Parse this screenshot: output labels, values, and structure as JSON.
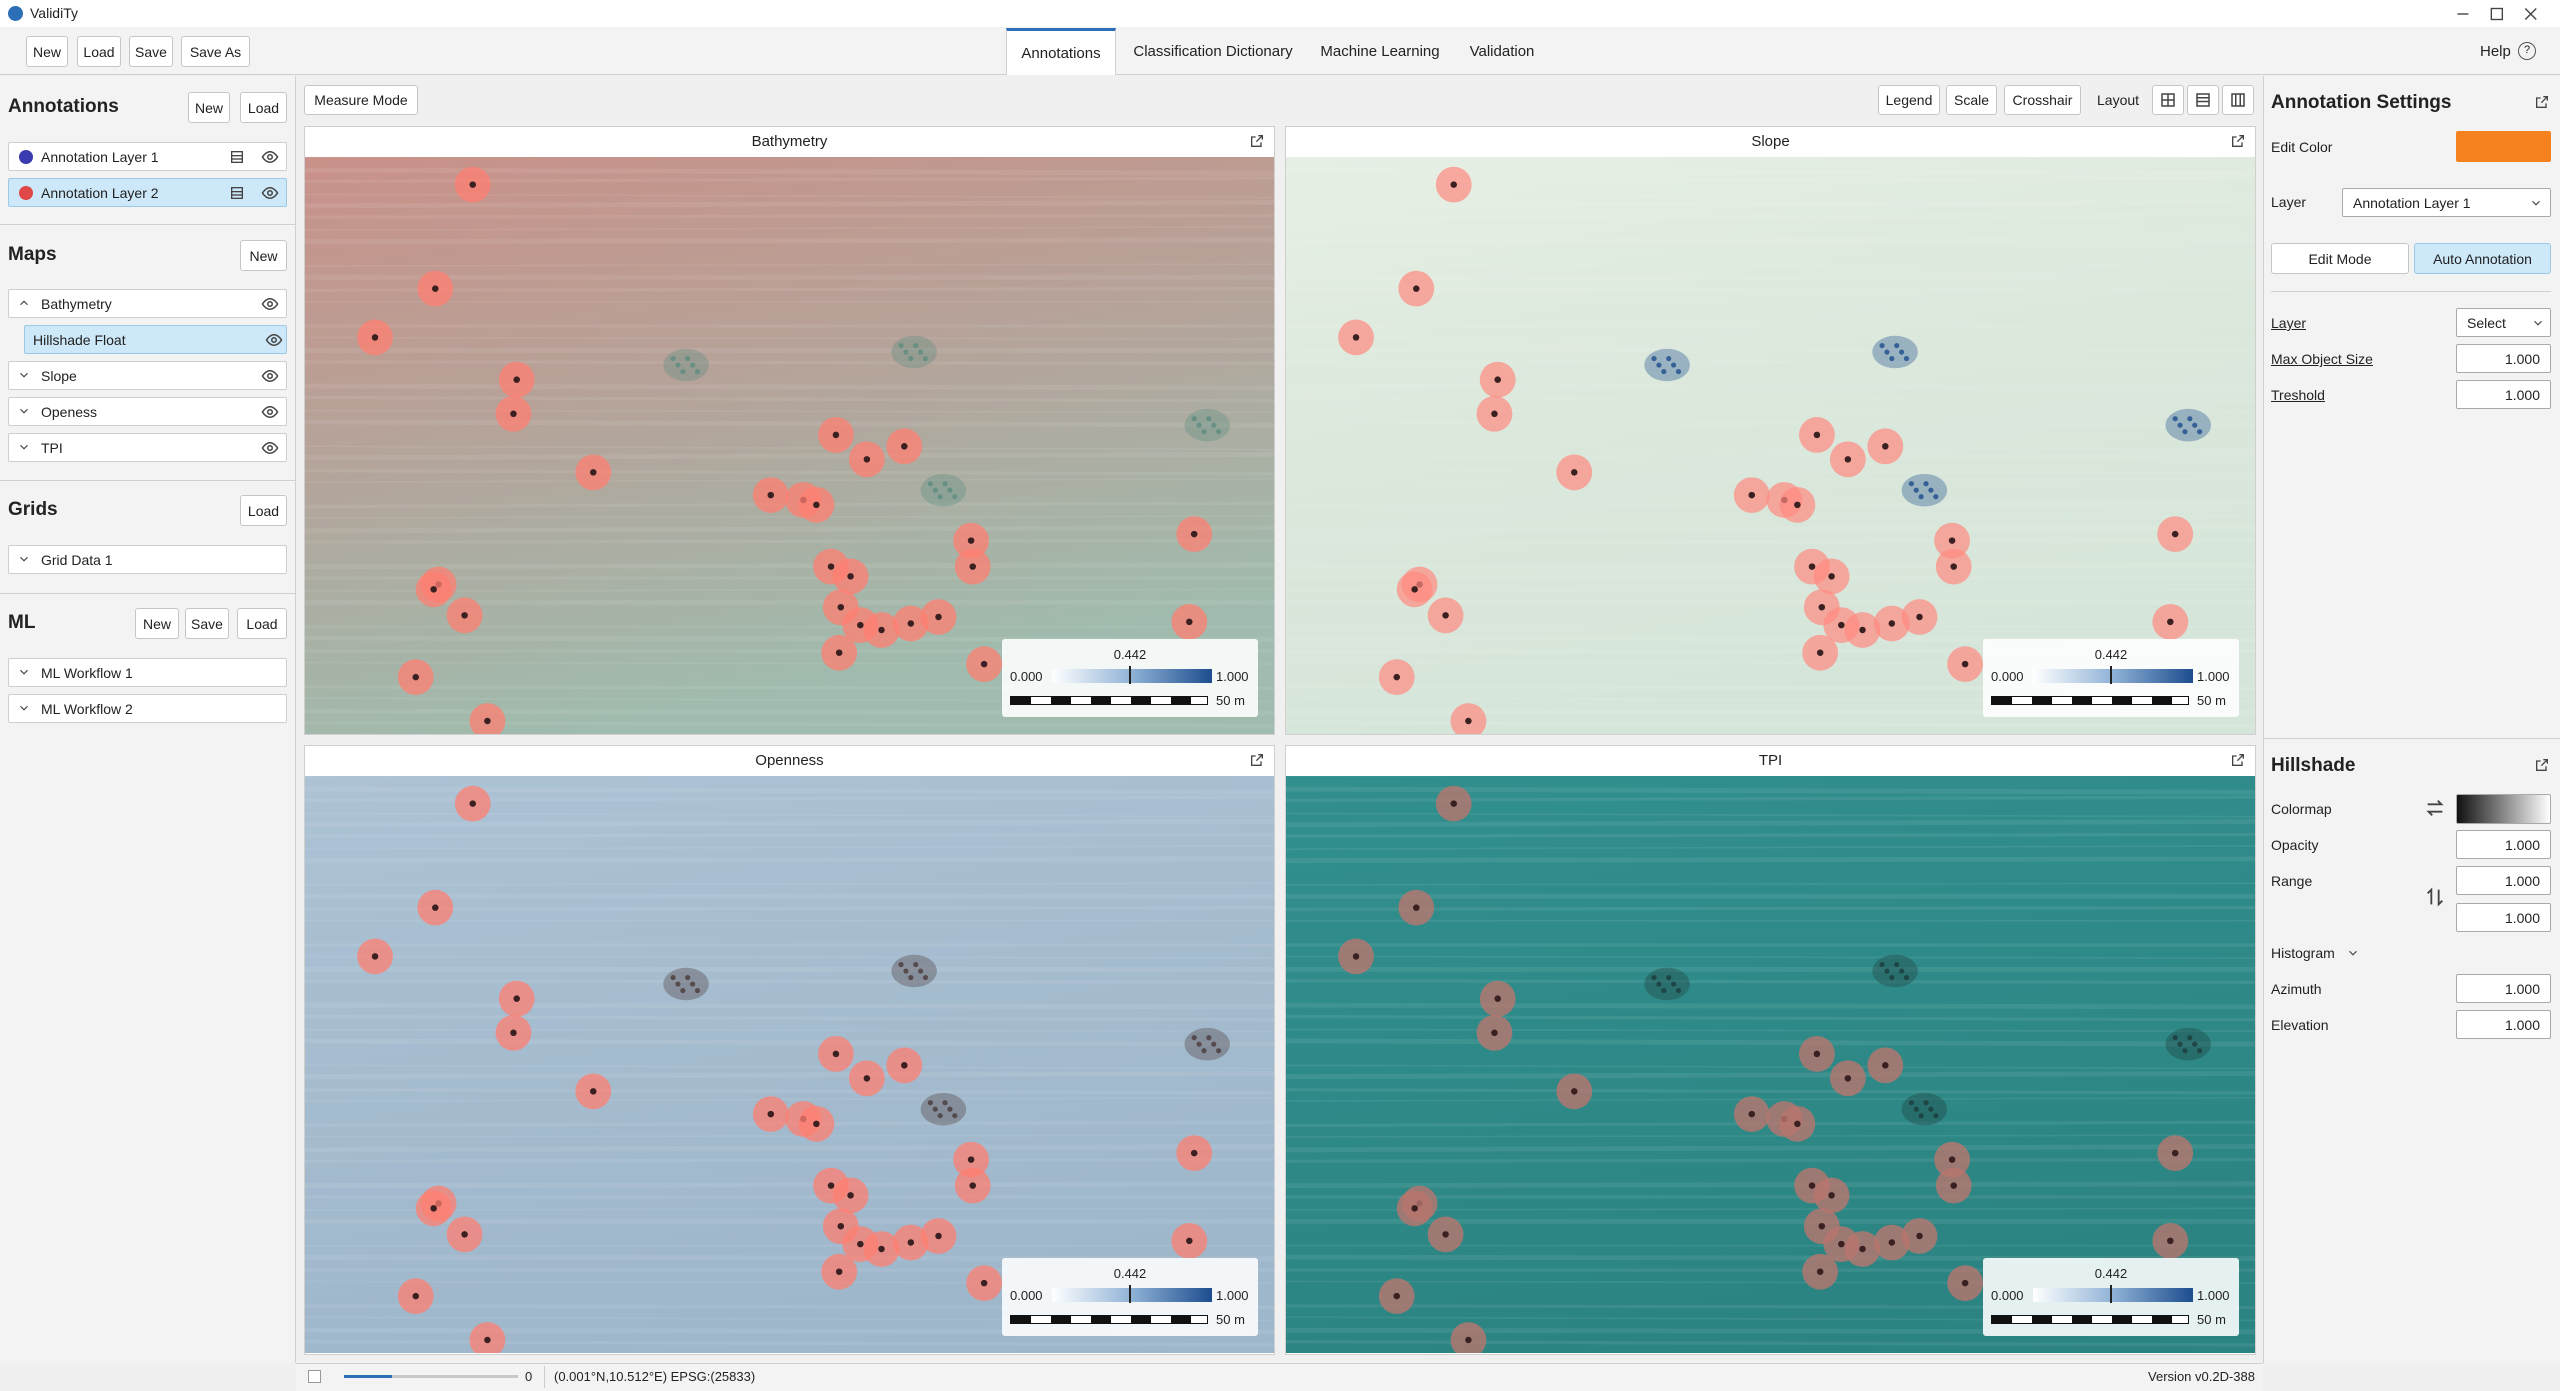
{
  "window": {
    "title": "ValidiTy"
  },
  "toolbar": {
    "file_buttons": [
      "New",
      "Load",
      "Save",
      "Save As"
    ],
    "tabs": [
      "Annotations",
      "Classification Dictionary",
      "Machine Learning",
      "Validation"
    ],
    "help": "Help"
  },
  "sidebar": {
    "annotations": {
      "title": "Annotations",
      "buttons": [
        "New",
        "Load"
      ],
      "layers": [
        "Annotation Layer 1",
        "Annotation Layer 2"
      ]
    },
    "maps": {
      "title": "Maps",
      "buttons": [
        "New"
      ],
      "items": [
        "Bathymetry",
        "Hillshade Float",
        "Slope",
        "Openess",
        "TPI"
      ]
    },
    "grids": {
      "title": "Grids",
      "buttons": [
        "Load"
      ],
      "items": [
        "Grid Data 1"
      ]
    },
    "ml": {
      "title": "ML",
      "buttons": [
        "New",
        "Save",
        "Load"
      ],
      "items": [
        "ML Workflow 1",
        "ML Workflow 2"
      ]
    }
  },
  "viewer": {
    "measure_mode": "Measure Mode",
    "toggles": [
      "Legend",
      "Scale",
      "Crosshair"
    ],
    "layout_label": "Layout",
    "panels": [
      "Bathymetry",
      "Slope",
      "Openness",
      "TPI"
    ],
    "legend": {
      "value": "0.442",
      "min": "0.000",
      "max": "1.000",
      "scale": "50 m"
    }
  },
  "settings": {
    "title": "Annotation Settings",
    "edit_color": "Edit Color",
    "layer_label": "Layer",
    "layer_value": "Annotation Layer 1",
    "modes": [
      "Edit Mode",
      "Auto Annotation"
    ],
    "fields": [
      {
        "label": "Layer",
        "value": "Select"
      },
      {
        "label": "Max Object Size",
        "value": "1.000"
      },
      {
        "label": "Treshold",
        "value": "1.000"
      }
    ]
  },
  "hillshade": {
    "title": "Hillshade",
    "colormap": "Colormap",
    "opacity": {
      "label": "Opacity",
      "value": "1.000"
    },
    "range": {
      "label": "Range",
      "values": [
        "1.000",
        "1.000"
      ]
    },
    "histogram": "Histogram",
    "azimuth": {
      "label": "Azimuth",
      "value": "1.000"
    },
    "elevation": {
      "label": "Elevation",
      "value": "1.000"
    }
  },
  "status": {
    "slider_value": "0",
    "coords": "(0.001°N,10.512°E) EPSG:(25833)",
    "version": "Version v0.2D-388"
  }
}
